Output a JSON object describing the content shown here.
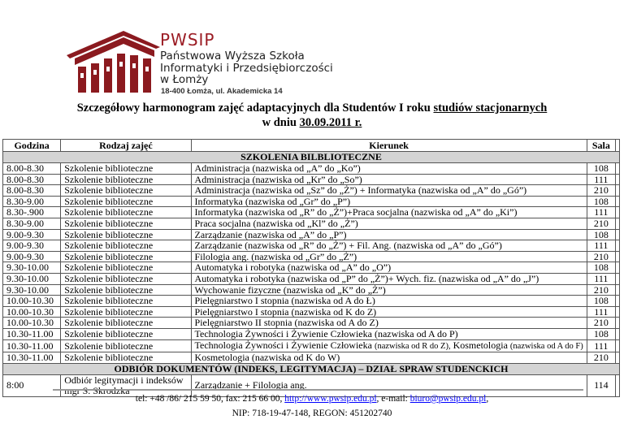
{
  "header": {
    "brand": "PWSIP",
    "institution_lines": [
      "Państwowa Wyższa Szkoła",
      "Informatyki i Przedsiębiorczości",
      "w Łomży"
    ],
    "address": "18-400 Łomża,  ul. Akademicka 14",
    "brand_color": "#9b1c24"
  },
  "title": {
    "line1_prefix": "Szczegółowy harmonogram zajęć adaptacyjnych dla Studentów I roku ",
    "line1_underlined": "studiów stacjonarnych",
    "line2_prefix": "w dniu ",
    "line2_underlined": "30.09.2011 r."
  },
  "table": {
    "columns": [
      "Godzina",
      "Rodzaj zajęć",
      "Kierunek",
      "Sala"
    ],
    "section1": "SZKOLENIA BILBLIOTECZNE",
    "rows": [
      {
        "time": "8.00-8.30",
        "type": "Szkolenie biblioteczne",
        "course": "Administracja (nazwiska od „A” do „Ko”)",
        "room": "108"
      },
      {
        "time": "8.00-8.30",
        "type": "Szkolenie biblioteczne",
        "course": "Administracja (nazwiska od „Kr” do „So”)",
        "room": "111"
      },
      {
        "time": "8.00-8.30",
        "type": "Szkolenie biblioteczne",
        "course": "Administracja (nazwiska od „Sz” do „Ż”) + Informatyka (nazwiska od „A” do „Gó”)",
        "room": "210"
      },
      {
        "time": "8.30-9.00",
        "type": "Szkolenie biblioteczne",
        "course": "Informatyka (nazwiska od „Gr” do „P”)",
        "room": "108"
      },
      {
        "time": "8.30-.900",
        "type": "Szkolenie biblioteczne",
        "course": "Informatyka (nazwiska od „R” do „Ż”)+Praca socjalna (nazwiska od „A” do „Ki”)",
        "room": "111"
      },
      {
        "time": "8.30-9.00",
        "type": "Szkolenie biblioteczne",
        "course": "Praca socjalna (nazwiska od „Kl” do „Ż”)",
        "room": "210"
      },
      {
        "time": "9.00-9.30",
        "type": "Szkolenie biblioteczne",
        "course": "Zarządzanie (nazwiska od „A” do „P”)",
        "room": "108"
      },
      {
        "time": "9.00-9.30",
        "type": "Szkolenie biblioteczne",
        "course": "Zarządzanie (nazwiska od „R” do „Ż”) + Fil. Ang. (nazwiska od „A” do „Gó”)",
        "room": "111"
      },
      {
        "time": "9.00-9.30",
        "type": "Szkolenie biblioteczne",
        "course": "Filologia ang. (nazwiska od „Gr” do „Ż”)",
        "room": "210"
      },
      {
        "time": "9.30-10.00",
        "type": "Szkolenie biblioteczne",
        "course": "Automatyka i robotyka (nazwiska od „A” do „O”)",
        "room": "108"
      },
      {
        "time": "9.30-10.00",
        "type": "Szkolenie biblioteczne",
        "course": "Automatyka i robotyka  (nazwiska od „P” do „Ż”)+ Wych. fiz. (nazwiska od „A” do „J”)",
        "room": "111"
      },
      {
        "time": "9.30-10.00",
        "type": "Szkolenie biblioteczne",
        "course": "Wychowanie fizyczne (nazwiska od „K” do „Ż”)",
        "room": "210"
      },
      {
        "time": "10.00-10.30",
        "type": "Szkolenie biblioteczne",
        "course": "Pielęgniarstwo I stopnia (nazwiska od A do Ł)",
        "room": "108"
      },
      {
        "time": "10.00-10.30",
        "type": "Szkolenie biblioteczne",
        "course": "Pielęgniarstwo I stopnia (nazwiska od K do Z)",
        "room": "111"
      },
      {
        "time": "10.00-10.30",
        "type": "Szkolenie biblioteczne",
        "course": "Pielęgniarstwo II stopnia (nazwiska od A do Z)",
        "room": "210"
      },
      {
        "time": "10.30-11.00",
        "type": "Szkolenie biblioteczne",
        "course": "Technologia Żywności i Żywienie Człowieka (nazwiska od A do P)",
        "room": "108"
      },
      {
        "time": "10.30-11.00",
        "type": "Szkolenie biblioteczne",
        "course_main": "Technologia Żywności i Żywienie Człowieka ",
        "course_small1": "(nazwiska od R do Z),",
        "course_mid": "  Kosmetologia ",
        "course_small2": "(nazwiska od A do F)",
        "room": "111"
      },
      {
        "time": "10.30-11.00",
        "type": "Szkolenie biblioteczne",
        "course": "Kosmetologia (nazwiska od K do W)",
        "room": "210"
      }
    ],
    "section2": "ODBIÓR DOKUMENTÓW (INDEKS, LEGITYMACJA) – DZIAŁ SPRAW STUDENCKICH",
    "last_row": {
      "time": "8:00",
      "type_line1": "Odbiór legitymacji i indeksów",
      "type_line2": "mgr S. Skrodzka",
      "course": "Zarządzanie + Filologia ang.",
      "room": "114"
    }
  },
  "footer": {
    "contact_prefix": "tel: +48 /86/ 215 59 50,  fax: 215 66 00, ",
    "website": "http://www.pwsip.edu.pl",
    "email_prefix": ", e-mail: ",
    "email": "biuro@pwsip.edu.pl",
    "email_suffix": ",",
    "ids": "NIP: 718-19-47-148, REGON: 451202740",
    "link_color": "#0000ff"
  }
}
